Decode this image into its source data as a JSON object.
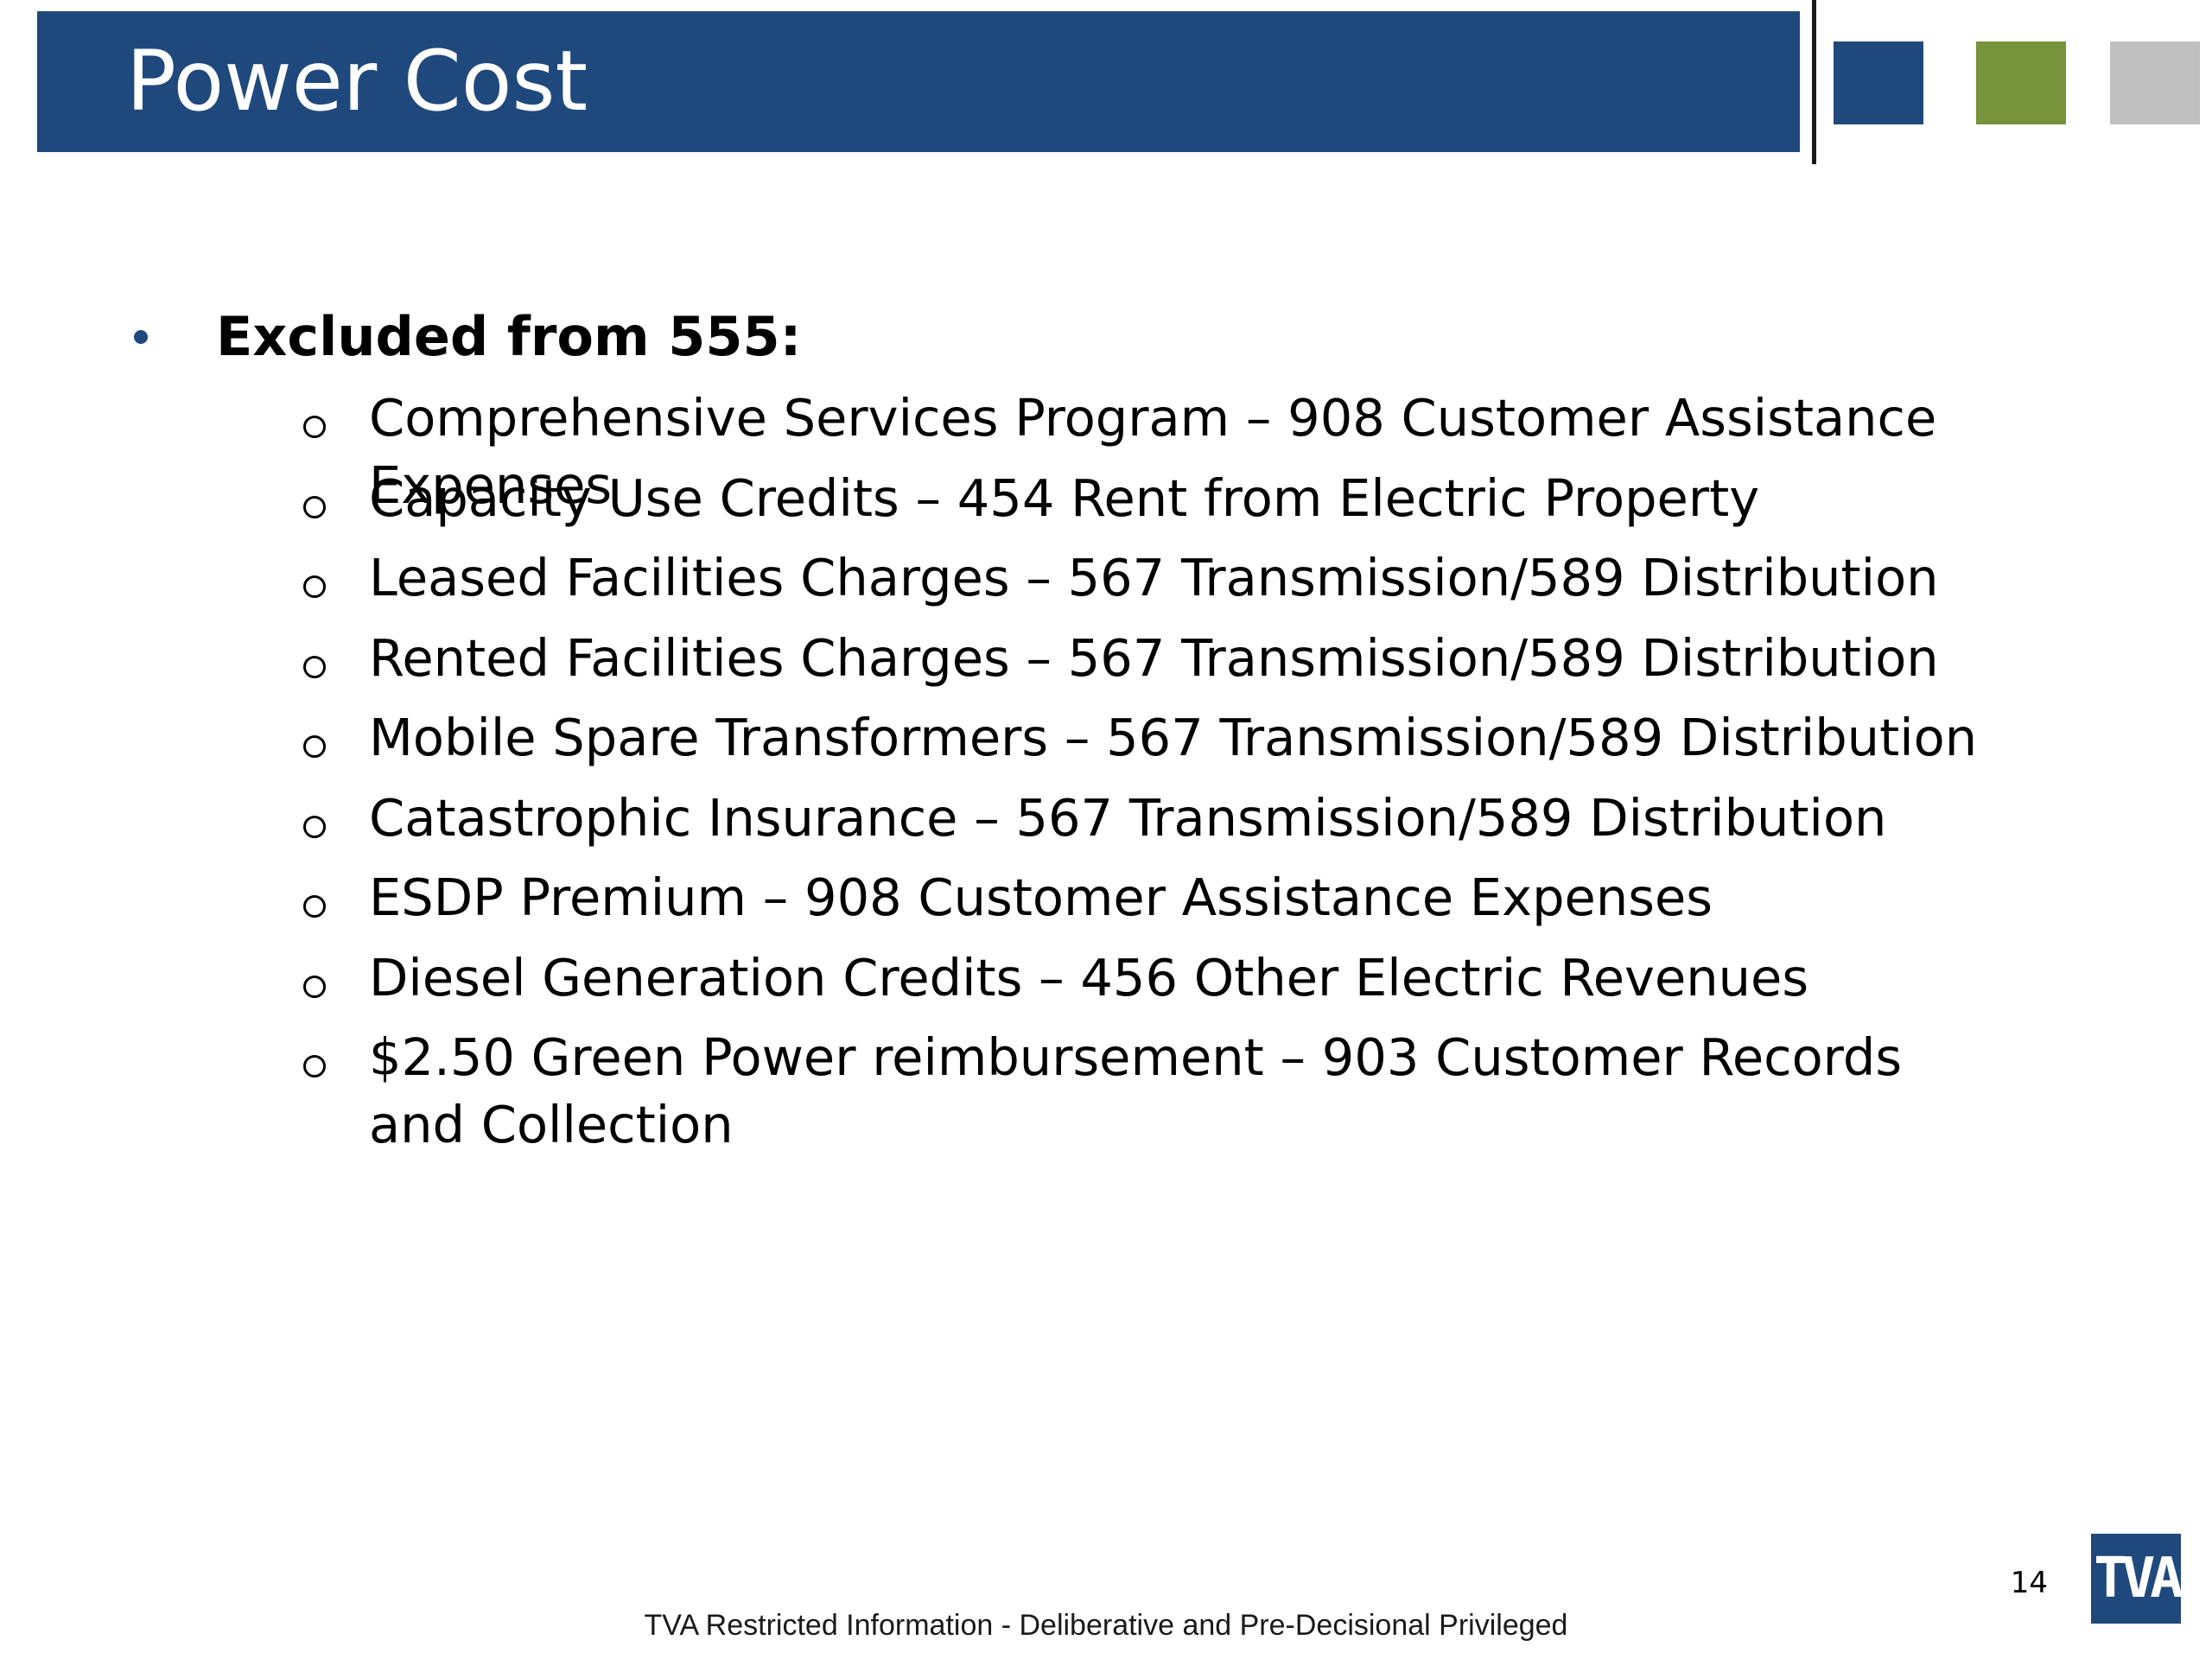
{
  "slide": {
    "title": "Power Cost",
    "bullet_heading": "Excluded from 555:",
    "items": [
      "Comprehensive Services Program – 908 Customer Assistance Expenses",
      "Capacity Use Credits – 454 Rent from Electric Property",
      "Leased Facilities Charges – 567 Transmission/589 Distribution",
      "Rented Facilities Charges – 567 Transmission/589 Distribution",
      "Mobile Spare Transformers – 567 Transmission/589 Distribution",
      "Catastrophic Insurance – 567 Transmission/589 Distribution",
      "ESDP Premium – 908 Customer Assistance Expenses",
      "Diesel Generation Credits – 456 Other Electric Revenues",
      "$2.50 Green Power reimbursement – 903 Customer Records and Collection"
    ],
    "page_number": "14",
    "footer": "TVA Restricted Information - Deliberative and Pre-Decisional Privileged",
    "logo_text": "TVA"
  },
  "colors": {
    "title_bar": "#1f497d",
    "square_blue": "#1f497d",
    "square_green": "#77933c",
    "square_gray": "#c0c0c0"
  }
}
